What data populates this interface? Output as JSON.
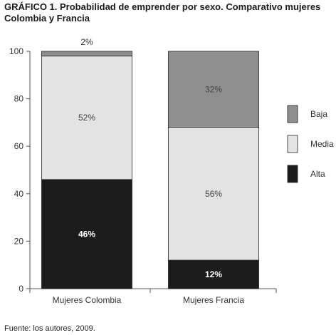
{
  "title": "GRÁFICO 1. Probabilidad de emprender por sexo. Comparativo mujeres Colombia y Francia",
  "source": "Fuente: los autores, 2009.",
  "chart_data": {
    "type": "bar",
    "stacked": true,
    "categories": [
      "Mujeres Colombia",
      "Mujeres Francia"
    ],
    "series": [
      {
        "name": "Alta",
        "values": [
          46,
          12
        ],
        "color": "#1c1c1c",
        "labels": [
          "46%",
          "12%"
        ]
      },
      {
        "name": "Media",
        "values": [
          52,
          56
        ],
        "color": "#e3e3e3",
        "labels": [
          "52%",
          "56%"
        ]
      },
      {
        "name": "Baja",
        "values": [
          2,
          32
        ],
        "color": "#8f8f8f",
        "labels": [
          "2%",
          "32%"
        ]
      }
    ],
    "legend_order": [
      "Baja",
      "Media",
      "Alta"
    ],
    "legend_position": "right",
    "ylim": [
      0,
      100
    ],
    "yticks": [
      "0",
      "20",
      "40",
      "60",
      "80",
      "100"
    ],
    "grid": false
  }
}
